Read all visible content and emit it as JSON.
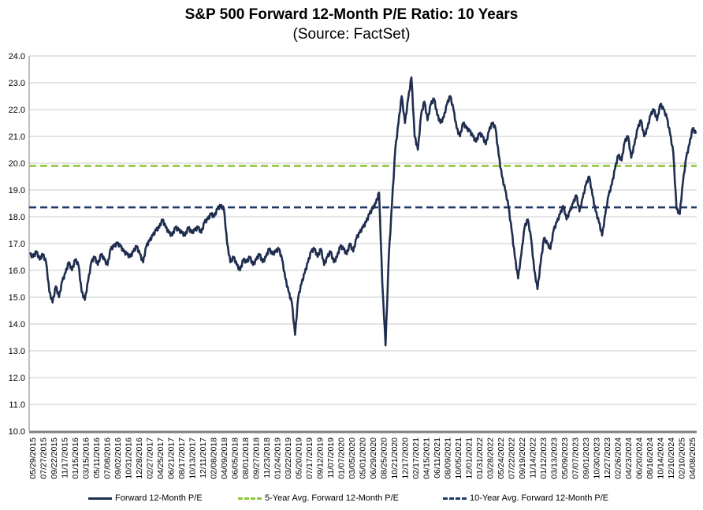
{
  "chart_data": {
    "type": "line",
    "title": "S&P 500 Forward 12-Month P/E Ratio: 10 Years",
    "subtitle": "(Source: FactSet)",
    "xlabel": "",
    "ylabel": "",
    "ylim": [
      10.0,
      24.0
    ],
    "yticks": [
      "10.0",
      "11.0",
      "12.0",
      "13.0",
      "14.0",
      "15.0",
      "16.0",
      "17.0",
      "18.0",
      "19.0",
      "20.0",
      "21.0",
      "22.0",
      "23.0",
      "24.0"
    ],
    "xticks": [
      "05/29/2015",
      "07/27/2015",
      "09/22/2015",
      "11/17/2015",
      "01/15/2016",
      "03/15/2016",
      "05/11/2016",
      "07/08/2016",
      "09/02/2016",
      "10/31/2016",
      "12/28/2016",
      "02/27/2017",
      "04/25/2017",
      "06/21/2017",
      "08/17/2017",
      "10/13/2017",
      "12/11/2017",
      "02/08/2018",
      "04/09/2018",
      "06/05/2018",
      "08/01/2018",
      "09/27/2018",
      "11/23/2018",
      "01/24/2019",
      "03/22/2019",
      "05/20/2019",
      "07/17/2019",
      "09/12/2019",
      "11/07/2019",
      "01/07/2020",
      "03/05/2020",
      "05/01/2020",
      "06/29/2020",
      "08/25/2020",
      "10/21/2020",
      "12/17/2020",
      "02/17/2021",
      "04/15/2021",
      "06/11/2021",
      "08/09/2021",
      "10/05/2021",
      "12/01/2021",
      "01/31/2022",
      "03/28/2022",
      "05/24/2022",
      "07/22/2022",
      "09/19/2022",
      "11/14/2022",
      "01/12/2023",
      "03/13/2023",
      "05/09/2023",
      "07/07/2023",
      "09/01/2023",
      "10/30/2023",
      "12/27/2023",
      "02/26/2024",
      "04/23/2024",
      "06/20/2024",
      "08/16/2024",
      "10/14/2024",
      "12/10/2024",
      "02/10/2025",
      "04/08/2025"
    ],
    "grid": true,
    "legend_position": "bottom",
    "series": [
      {
        "name": "Forward 12-Month P/E",
        "color": "#1f2d4f",
        "style": "solid",
        "x_start": "05/29/2015",
        "x_end": "06/2025",
        "values": [
          16.6,
          16.5,
          16.7,
          16.4,
          16.6,
          16.3,
          15.2,
          14.8,
          15.4,
          15.0,
          15.6,
          15.9,
          16.3,
          16.0,
          16.4,
          16.2,
          15.2,
          14.9,
          15.6,
          16.3,
          16.5,
          16.2,
          16.6,
          16.4,
          16.2,
          16.8,
          16.9,
          17.0,
          16.9,
          16.7,
          16.6,
          16.5,
          16.7,
          16.9,
          16.6,
          16.3,
          16.9,
          17.1,
          17.3,
          17.5,
          17.6,
          17.9,
          17.6,
          17.4,
          17.3,
          17.6,
          17.5,
          17.4,
          17.3,
          17.6,
          17.4,
          17.5,
          17.6,
          17.4,
          17.8,
          17.9,
          18.1,
          18.0,
          18.3,
          18.4,
          18.3,
          17.0,
          16.3,
          16.5,
          16.2,
          16.0,
          16.4,
          16.3,
          16.5,
          16.2,
          16.4,
          16.6,
          16.3,
          16.5,
          16.8,
          16.6,
          16.7,
          16.8,
          16.4,
          15.7,
          15.2,
          14.8,
          13.6,
          15.0,
          15.5,
          15.9,
          16.3,
          16.7,
          16.8,
          16.5,
          16.8,
          16.2,
          16.5,
          16.7,
          16.3,
          16.5,
          16.9,
          16.8,
          16.6,
          17.0,
          16.7,
          17.2,
          17.4,
          17.6,
          17.8,
          18.1,
          18.3,
          18.5,
          18.9,
          15.5,
          13.2,
          16.5,
          18.5,
          20.5,
          21.5,
          22.5,
          21.5,
          22.4,
          23.2,
          21.0,
          20.5,
          21.8,
          22.3,
          21.6,
          22.2,
          22.4,
          21.8,
          21.5,
          21.7,
          22.2,
          22.5,
          22.0,
          21.3,
          21.0,
          21.5,
          21.3,
          21.2,
          21.0,
          20.8,
          21.1,
          21.0,
          20.7,
          21.2,
          21.5,
          21.3,
          20.3,
          19.5,
          19.0,
          18.4,
          17.5,
          16.5,
          15.7,
          16.6,
          17.6,
          17.9,
          17.2,
          16.0,
          15.3,
          16.3,
          17.2,
          17.0,
          16.8,
          17.5,
          17.8,
          18.1,
          18.4,
          17.9,
          18.2,
          18.5,
          18.8,
          18.2,
          18.7,
          19.2,
          19.5,
          18.8,
          18.2,
          17.8,
          17.3,
          18.1,
          18.8,
          19.2,
          19.8,
          20.3,
          20.1,
          20.8,
          21.0,
          20.2,
          20.7,
          21.3,
          21.6,
          21.0,
          21.3,
          21.8,
          22.0,
          21.6,
          22.2,
          22.0,
          21.7,
          21.1,
          20.4,
          18.3,
          18.1,
          19.3,
          20.2,
          20.7,
          21.3,
          21.1
        ]
      },
      {
        "name": "5-Year Avg. Forward 12-Month P/E",
        "color": "#8dc63f",
        "style": "dashed",
        "value": 19.9
      },
      {
        "name": "10-Year Avg. Forward 12-Month P/E",
        "color": "#1f3a68",
        "style": "dashed",
        "value": 18.35
      }
    ]
  }
}
